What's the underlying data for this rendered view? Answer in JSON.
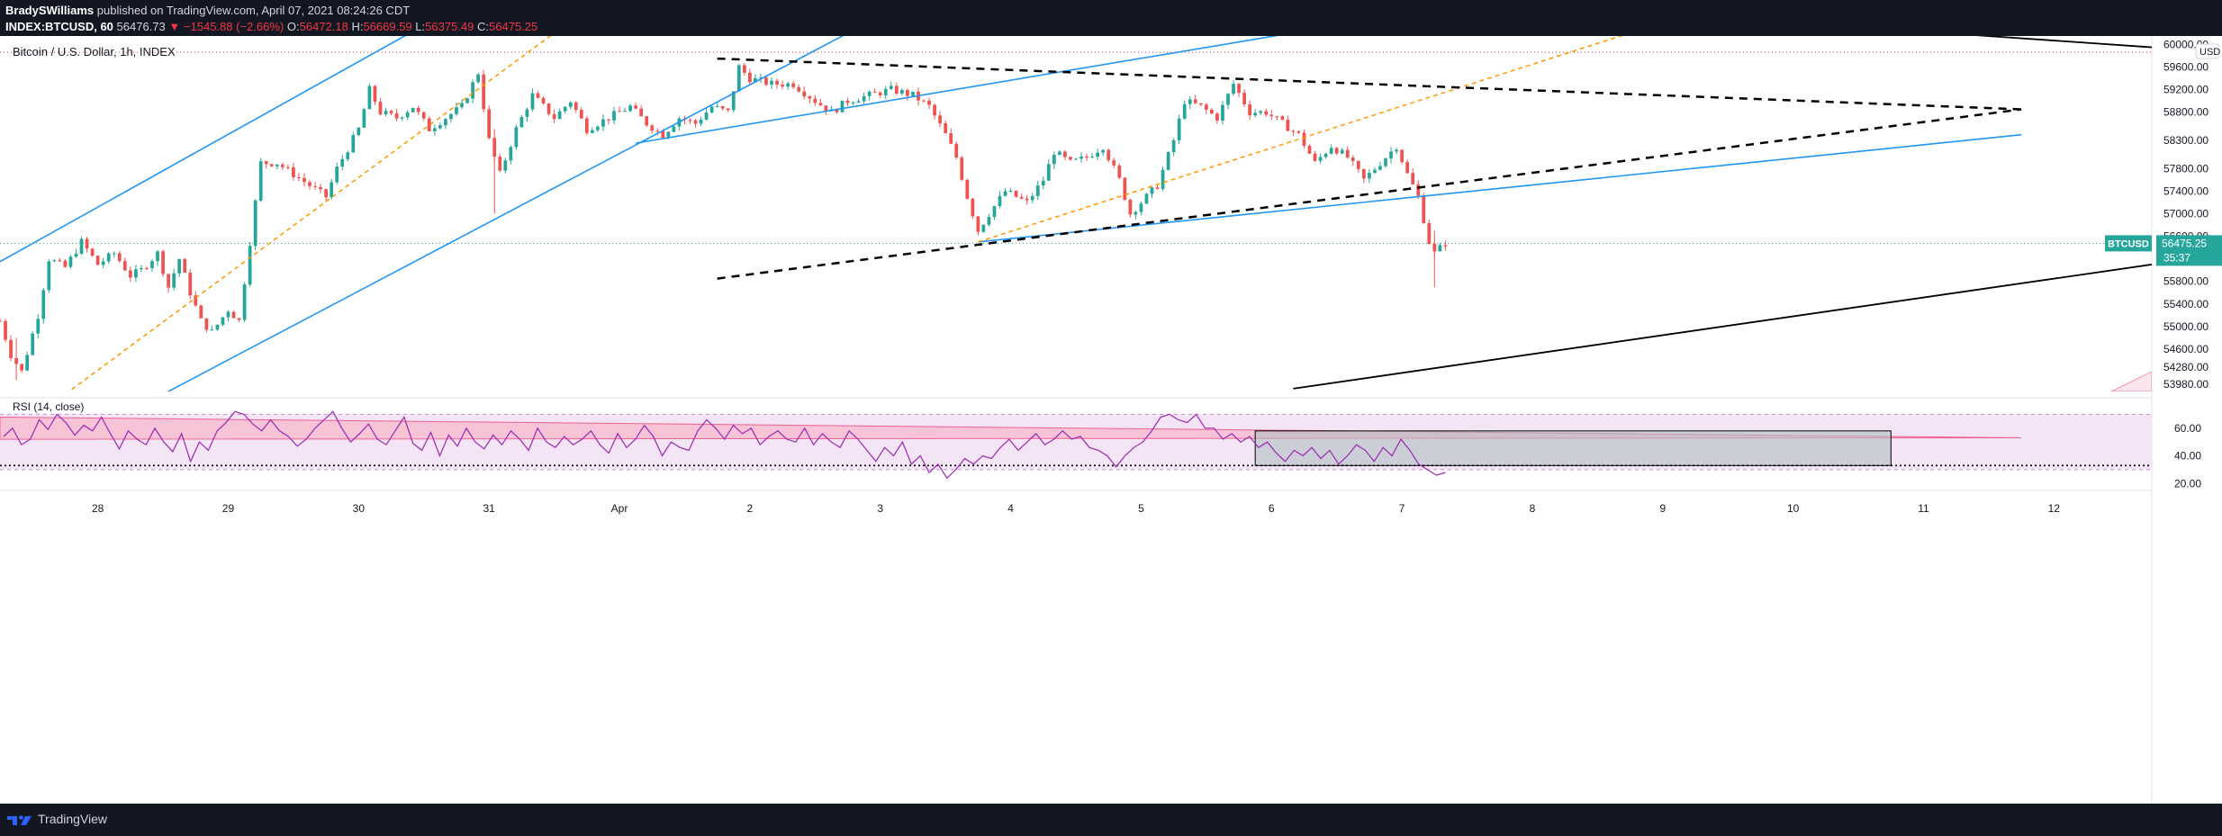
{
  "header": {
    "author": "BradySWilliams",
    "published": "published on TradingView.com, April 07, 2021 08:24:26 CDT",
    "symbol": "INDEX:BTCUSD, 60",
    "last": "56476.73",
    "change": "−1545.88 (−2.66%)",
    "o_label": "O:",
    "o_value": "56472.18",
    "h_label": "H:",
    "h_value": "56669.59",
    "l_label": "L:",
    "l_value": "56375.49",
    "c_label": "C:",
    "c_value": "56475.25"
  },
  "footer": {
    "brand": "TradingView"
  },
  "colors": {
    "up": "#26a69a",
    "down": "#ef5350",
    "channel": "#2196f3",
    "fib": "#ff9800",
    "rsi_line": "#9c27b0",
    "rsi_band": "#f3e5f5",
    "rsi_wedge": "#f48fb1",
    "price_badge": "#26a69a"
  },
  "chart_data": [
    {
      "type": "candlestick",
      "title": "Bitcoin / U.S. Dollar, 1h, INDEX",
      "currency": "USD",
      "y_ticks": [
        60000,
        59600,
        59200,
        58800,
        58300,
        57800,
        57400,
        57000,
        56600,
        56200,
        55800,
        55400,
        55000,
        54600,
        54280,
        53980
      ],
      "y_tick_labels": [
        "60000.00",
        "59600.00",
        "59200.00",
        "58800.00",
        "58300.00",
        "57800.00",
        "57400.00",
        "57000.00",
        "56600.00",
        "56200.00",
        "55800.00",
        "55400.00",
        "55000.00",
        "54600.00",
        "54280.00",
        "53980.00"
      ],
      "ylim": [
        53850,
        60150
      ],
      "x_tick_labels": [
        "28",
        "29",
        "30",
        "31",
        "Apr",
        "2",
        "3",
        "4",
        "5",
        "6",
        "7",
        "8",
        "9",
        "10",
        "11",
        "12"
      ],
      "x_start": "2021-03-27 06:00",
      "x_end": "2021-04-12 18:00",
      "last_price_label": "56475.25",
      "last_price": 56475.25,
      "last_symbol_label": "BTCUSD",
      "countdown": "35:37",
      "high_line": 59860,
      "path": [
        [
          "2021-03-27 06:00",
          55100
        ],
        [
          "2021-03-27 08:00",
          54500
        ],
        [
          "2021-03-27 10:00",
          54200
        ],
        [
          "2021-03-27 13:00",
          55200
        ],
        [
          "2021-03-27 15:00",
          56200
        ],
        [
          "2021-03-27 18:00",
          56050
        ],
        [
          "2021-03-27 21:00",
          56500
        ],
        [
          "2021-03-28 00:00",
          56100
        ],
        [
          "2021-03-28 03:00",
          56300
        ],
        [
          "2021-03-28 06:00",
          55900
        ],
        [
          "2021-03-28 08:00",
          56000
        ],
        [
          "2021-03-28 11:00",
          56300
        ],
        [
          "2021-03-28 13:00",
          55700
        ],
        [
          "2021-03-28 15:00",
          56200
        ],
        [
          "2021-03-28 17:00",
          55600
        ],
        [
          "2021-03-28 19:00",
          55100
        ],
        [
          "2021-03-28 21:00",
          54900
        ],
        [
          "2021-03-29 00:00",
          55300
        ],
        [
          "2021-03-29 02:00",
          55100
        ],
        [
          "2021-03-29 04:00",
          56500
        ],
        [
          "2021-03-29 06:00",
          57900
        ],
        [
          "2021-03-29 09:00",
          57900
        ],
        [
          "2021-03-29 12:00",
          57700
        ],
        [
          "2021-03-29 15:00",
          57500
        ],
        [
          "2021-03-29 18:00",
          57300
        ],
        [
          "2021-03-29 20:00",
          57800
        ],
        [
          "2021-03-30 00:00",
          58500
        ],
        [
          "2021-03-30 02:00",
          59200
        ],
        [
          "2021-03-30 04:00",
          58800
        ],
        [
          "2021-03-30 07:00",
          58700
        ],
        [
          "2021-03-30 10:00",
          58900
        ],
        [
          "2021-03-30 13:00",
          58500
        ],
        [
          "2021-03-30 16:00",
          58700
        ],
        [
          "2021-03-30 19:00",
          58900
        ],
        [
          "2021-03-30 22:00",
          59500
        ],
        [
          "2021-03-31 00:00",
          58300
        ],
        [
          "2021-03-31 02:00",
          57700
        ],
        [
          "2021-03-31 05:00",
          58500
        ],
        [
          "2021-03-31 08:00",
          59100
        ],
        [
          "2021-03-31 12:00",
          58700
        ],
        [
          "2021-03-31 15:00",
          59000
        ],
        [
          "2021-03-31 18:00",
          58500
        ],
        [
          "2021-03-31 22:00",
          58700
        ],
        [
          "2021-04-01 02:00",
          58900
        ],
        [
          "2021-04-01 05:00",
          58600
        ],
        [
          "2021-04-01 08:00",
          58400
        ],
        [
          "2021-04-01 11:00",
          58700
        ],
        [
          "2021-04-01 14:00",
          58600
        ],
        [
          "2021-04-01 17:00",
          58900
        ],
        [
          "2021-04-01 20:00",
          58800
        ],
        [
          "2021-04-01 22:00",
          59600
        ],
        [
          "2021-04-02 00:00",
          59400
        ],
        [
          "2021-04-02 04:00",
          59300
        ],
        [
          "2021-04-02 08:00",
          59300
        ],
        [
          "2021-04-02 12:00",
          59000
        ],
        [
          "2021-04-02 15:00",
          58800
        ],
        [
          "2021-04-02 18:00",
          59000
        ],
        [
          "2021-04-02 22:00",
          59100
        ],
        [
          "2021-04-03 02:00",
          59200
        ],
        [
          "2021-04-03 06:00",
          59100
        ],
        [
          "2021-04-03 09:00",
          58900
        ],
        [
          "2021-04-03 12:00",
          58400
        ],
        [
          "2021-04-03 14:00",
          58000
        ],
        [
          "2021-04-03 16:00",
          57300
        ],
        [
          "2021-04-03 18:00",
          56700
        ],
        [
          "2021-04-03 20:00",
          57000
        ],
        [
          "2021-04-03 23:00",
          57400
        ],
        [
          "2021-04-04 03:00",
          57200
        ],
        [
          "2021-04-04 06:00",
          57600
        ],
        [
          "2021-04-04 08:00",
          58100
        ],
        [
          "2021-04-04 11:00",
          57900
        ],
        [
          "2021-04-04 14:00",
          58000
        ],
        [
          "2021-04-04 17:00",
          58200
        ],
        [
          "2021-04-04 20:00",
          57600
        ],
        [
          "2021-04-04 22:00",
          57000
        ],
        [
          "2021-04-05 00:00",
          57200
        ],
        [
          "2021-04-05 03:00",
          57500
        ],
        [
          "2021-04-05 06:00",
          58300
        ],
        [
          "2021-04-05 08:00",
          59000
        ],
        [
          "2021-04-05 11:00",
          58900
        ],
        [
          "2021-04-05 14:00",
          58700
        ],
        [
          "2021-04-05 17:00",
          59300
        ],
        [
          "2021-04-05 20:00",
          58800
        ],
        [
          "2021-04-05 23:00",
          58800
        ],
        [
          "2021-04-06 02:00",
          58600
        ],
        [
          "2021-04-06 05:00",
          58400
        ],
        [
          "2021-04-06 08:00",
          57900
        ],
        [
          "2021-04-06 11:00",
          58200
        ],
        [
          "2021-04-06 14:00",
          58000
        ],
        [
          "2021-04-06 17:00",
          57600
        ],
        [
          "2021-04-06 20:00",
          57900
        ],
        [
          "2021-04-06 23:00",
          58200
        ],
        [
          "2021-04-07 01:00",
          57700
        ],
        [
          "2021-04-07 03:00",
          57300
        ],
        [
          "2021-04-07 05:00",
          56500
        ],
        [
          "2021-04-07 06:00",
          56300
        ],
        [
          "2021-04-07 08:00",
          56480
        ]
      ],
      "trend_lines": [
        {
          "name": "channel-1-upper",
          "style": "blue",
          "from": [
            "2021-03-27 06:00",
            56150
          ],
          "to": [
            "2021-03-31 04:00",
            61200
          ]
        },
        {
          "name": "channel-1-lower",
          "style": "blue",
          "from": [
            "2021-03-28 12:00",
            53800
          ],
          "to": [
            "2021-04-02 18:00",
            60200
          ]
        },
        {
          "name": "channel-2-upper",
          "style": "blue",
          "from": [
            "2021-04-01 03:00",
            58250
          ],
          "to": [
            "2021-04-09 12:00",
            61500
          ]
        },
        {
          "name": "channel-2-lower",
          "style": "blue",
          "from": [
            "2021-04-03 18:00",
            56500
          ],
          "to": [
            "2021-04-11 18:00",
            58400
          ]
        },
        {
          "name": "fib-1",
          "style": "orange",
          "from": [
            "2021-03-27 18:00",
            53800
          ],
          "to": [
            "2021-04-01 02:00",
            61200
          ]
        },
        {
          "name": "fib-2",
          "style": "orange",
          "from": [
            "2021-04-03 18:00",
            56500
          ],
          "to": [
            "2021-04-10 12:00",
            61500
          ]
        },
        {
          "name": "wedge-upper",
          "style": "black-dash",
          "from": [
            "2021-04-01 18:00",
            59750
          ],
          "to": [
            "2021-04-11 18:00",
            58850
          ]
        },
        {
          "name": "wedge-lower",
          "style": "black-dash",
          "from": [
            "2021-04-01 18:00",
            55850
          ],
          "to": [
            "2021-04-11 18:00",
            58850
          ]
        },
        {
          "name": "resistance",
          "style": "black",
          "from": [
            "2021-04-03 00:00",
            61500
          ],
          "to": [
            "2021-04-12 18:00",
            59950
          ]
        },
        {
          "name": "support",
          "style": "black",
          "from": [
            "2021-04-06 04:00",
            53900
          ],
          "to": [
            "2021-04-12 18:00",
            56100
          ]
        }
      ]
    },
    {
      "type": "line",
      "title": "RSI (14, close)",
      "y_ticks": [
        60,
        40,
        20
      ],
      "y_tick_labels": [
        "60.00",
        "40.00",
        "20.00"
      ],
      "ylim": [
        15,
        80
      ],
      "band": [
        30,
        70
      ],
      "series": [
        {
          "values": [
            54,
            60,
            48,
            52,
            66,
            59,
            70,
            64,
            55,
            62,
            58,
            68,
            56,
            45,
            58,
            52,
            48,
            60,
            50,
            43,
            56,
            36,
            50,
            44,
            58,
            64,
            72,
            70,
            63,
            58,
            66,
            58,
            54,
            47,
            52,
            60,
            66,
            72,
            60,
            50,
            56,
            63,
            52,
            48,
            58,
            68,
            49,
            44,
            57,
            40,
            55,
            47,
            60,
            50,
            45,
            55,
            48,
            58,
            52,
            44,
            60,
            50,
            46,
            54,
            48,
            52,
            58,
            48,
            42,
            56,
            46,
            52,
            62,
            54,
            40,
            50,
            46,
            44,
            58,
            66,
            60,
            52,
            62,
            56,
            60,
            48,
            54,
            58,
            52,
            50,
            60,
            48,
            56,
            50,
            46,
            58,
            52,
            44,
            36,
            46,
            40,
            50,
            34,
            40,
            28,
            34,
            24,
            30,
            38,
            34,
            40,
            38,
            46,
            52,
            44,
            50,
            56,
            48,
            52,
            58,
            52,
            54,
            46,
            44,
            40,
            32,
            40,
            46,
            50,
            58,
            68,
            70,
            66,
            64,
            70,
            60,
            60,
            52,
            56,
            50,
            54,
            46,
            50,
            42,
            36,
            44,
            40,
            46,
            38,
            44,
            34,
            40,
            48,
            44,
            36,
            46,
            40,
            52,
            44,
            34,
            30,
            26,
            28
          ]
        }
      ]
    }
  ]
}
